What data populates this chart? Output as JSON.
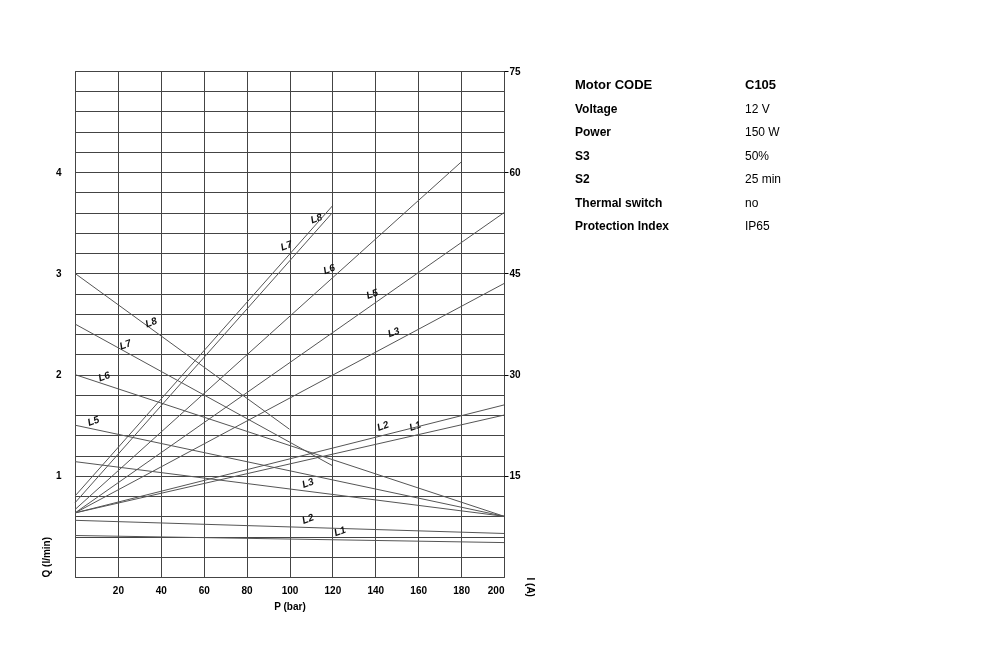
{
  "chart_data": [
    {
      "type": "line",
      "xlabel": "P (bar)",
      "ylabel": "Q (l/min)",
      "y2label": "I (A)",
      "xlim": [
        0,
        200
      ],
      "ylim": [
        0,
        5
      ],
      "y2lim": [
        0,
        75
      ],
      "xticks": [
        {
          "value": 0,
          "label": null
        },
        20,
        40,
        60,
        80,
        100,
        120,
        140,
        160,
        180,
        200
      ],
      "yticks": [
        {
          "value": 0,
          "label": null
        },
        {
          "value": 0.2,
          "label": null
        },
        {
          "value": 0.4,
          "label": null
        },
        {
          "value": 0.6,
          "label": null
        },
        {
          "value": 0.8,
          "label": null
        },
        1,
        {
          "value": 1.2,
          "label": null
        },
        {
          "value": 1.4,
          "label": null
        },
        {
          "value": 1.6,
          "label": null
        },
        {
          "value": 1.8,
          "label": null
        },
        2,
        {
          "value": 2.2,
          "label": null
        },
        {
          "value": 2.4,
          "label": null
        },
        {
          "value": 2.6,
          "label": null
        },
        {
          "value": 2.8,
          "label": null
        },
        3,
        {
          "value": 3.2,
          "label": null
        },
        {
          "value": 3.4,
          "label": null
        },
        {
          "value": 3.6,
          "label": null
        },
        {
          "value": 3.8,
          "label": null
        },
        4,
        {
          "value": 4.2,
          "label": null
        },
        {
          "value": 4.4,
          "label": null
        },
        {
          "value": 4.6,
          "label": null
        },
        {
          "value": 4.8,
          "label": null
        },
        {
          "value": 5,
          "label": null
        }
      ],
      "y2ticks": [
        15,
        30,
        45,
        60,
        75
      ],
      "grid": true,
      "series": [
        {
          "color": "#555555",
          "x": [
            0,
            100
          ],
          "values": [
            3.0,
            1.46
          ]
        },
        {
          "color": "#555555",
          "x": [
            0,
            120
          ],
          "values": [
            2.5,
            1.1
          ]
        },
        {
          "color": "#555555",
          "x": [
            0,
            200
          ],
          "values": [
            2.0,
            0.6
          ]
        },
        {
          "color": "#555555",
          "x": [
            0,
            200
          ],
          "values": [
            1.5,
            0.6
          ]
        },
        {
          "color": "#555555",
          "x": [
            0,
            200
          ],
          "values": [
            1.14,
            0.6
          ]
        },
        {
          "color": "#555555",
          "x": [
            0,
            200
          ],
          "values": [
            0.56,
            0.43
          ]
        },
        {
          "color": "#555555",
          "x": [
            0,
            200
          ],
          "values": [
            0.41,
            0.34
          ]
        },
        {
          "color": "#555555",
          "axis": "y2",
          "x": [
            0,
            120
          ],
          "values": [
            12,
            55
          ]
        },
        {
          "color": "#555555",
          "axis": "y2",
          "x": [
            0,
            120
          ],
          "values": [
            11,
            54
          ]
        },
        {
          "color": "#555555",
          "axis": "y2",
          "x": [
            0,
            180
          ],
          "values": [
            10,
            61.5
          ]
        },
        {
          "color": "#555555",
          "axis": "y2",
          "x": [
            0,
            200
          ],
          "values": [
            9.5,
            54
          ]
        },
        {
          "color": "#555555",
          "axis": "y2",
          "x": [
            0,
            200
          ],
          "values": [
            9.5,
            43.5
          ]
        },
        {
          "color": "#555555",
          "axis": "y2",
          "x": [
            0,
            200
          ],
          "values": [
            9.5,
            25.5
          ]
        },
        {
          "color": "#555555",
          "axis": "y2",
          "x": [
            0,
            200
          ],
          "values": [
            9.5,
            24
          ]
        }
      ],
      "annotations": [
        {
          "text": "L8",
          "x": 37,
          "y": 2.43
        },
        {
          "text": "L7",
          "x": 25,
          "y": 2.21
        },
        {
          "text": "L6",
          "x": 15,
          "y": 1.895
        },
        {
          "text": "L5",
          "x": 10,
          "y": 1.455
        },
        {
          "text": "L3",
          "x": 110,
          "y": 0.843
        },
        {
          "text": "L2",
          "x": 110,
          "y": 0.4885
        },
        {
          "text": "L1",
          "x": 125,
          "y": 0.36625
        },
        {
          "text": "L7",
          "x": 100,
          "y": 3.189
        },
        {
          "text": "L8",
          "x": 114,
          "y": 3.457
        },
        {
          "text": "L6",
          "x": 120,
          "y": 2.956
        },
        {
          "text": "L5",
          "x": 140,
          "y": 2.71
        },
        {
          "text": "L3",
          "x": 150,
          "y": 2.333
        },
        {
          "text": "L2",
          "x": 145,
          "y": 1.407
        },
        {
          "text": "L1",
          "x": 160,
          "y": 1.407
        }
      ]
    },
    {
      "type": "other",
      "annotations": [
        "Motor CODE",
        "C105",
        "Voltage",
        "12 V",
        "Power",
        "150 W",
        "S3",
        "50%",
        "S2",
        "25 min",
        "Thermal switch",
        "no",
        "Protection Index",
        "IP65"
      ]
    }
  ]
}
